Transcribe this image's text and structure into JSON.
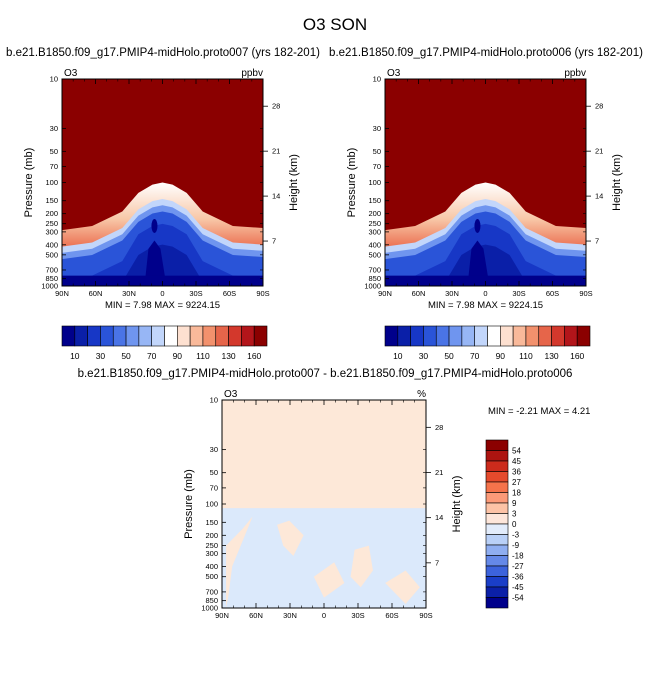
{
  "title": "O3 SON",
  "colors": {
    "dark_red": "#8b0000",
    "background": "#ffffff",
    "diff_positive": "#fde8d8",
    "diff_negative": "#dbe9fb"
  },
  "chart_data": [
    {
      "type": "heatmap",
      "title": "b.e21.B1850.f09_g17.PMIP4-midHolo.proto007 (yrs 182-201)",
      "corner_left": "O3",
      "corner_right": "ppbv",
      "ylabel": "Pressure (mb)",
      "ylabel_right": "Height (km)",
      "x_ticks": [
        "90N",
        "60N",
        "30N",
        "0",
        "30S",
        "60S",
        "90S"
      ],
      "y_ticks": [
        "10",
        "30",
        "50",
        "70",
        "100",
        "150",
        "200",
        "250",
        "300",
        "400",
        "500",
        "700",
        "850",
        "1000"
      ],
      "y_ticks_right": [
        "28",
        "21",
        "14",
        "7"
      ],
      "stats": "MIN =   7.98   MAX = 9224.15",
      "colorbar_labels": [
        "10",
        "30",
        "50",
        "70",
        "90",
        "110",
        "130",
        "160"
      ]
    },
    {
      "type": "heatmap",
      "title": "b.e21.B1850.f09_g17.PMIP4-midHolo.proto006 (yrs 182-201)",
      "corner_left": "O3",
      "corner_right": "ppbv",
      "ylabel": "Pressure (mb)",
      "ylabel_right": "Height (km)",
      "x_ticks": [
        "90N",
        "60N",
        "30N",
        "0",
        "30S",
        "60S",
        "90S"
      ],
      "y_ticks": [
        "10",
        "30",
        "50",
        "70",
        "100",
        "150",
        "200",
        "250",
        "300",
        "400",
        "500",
        "700",
        "850",
        "1000"
      ],
      "y_ticks_right": [
        "28",
        "21",
        "14",
        "7"
      ],
      "stats": "MIN =   7.98   MAX = 9224.15",
      "colorbar_labels": [
        "10",
        "30",
        "50",
        "70",
        "90",
        "110",
        "130",
        "160"
      ]
    },
    {
      "type": "heatmap",
      "title": "b.e21.B1850.f09_g17.PMIP4-midHolo.proto007 - b.e21.B1850.f09_g17.PMIP4-midHolo.proto006",
      "corner_left": "O3",
      "corner_right": "%",
      "ylabel": "Pressure (mb)",
      "ylabel_right": "Height (km)",
      "x_ticks": [
        "90N",
        "60N",
        "30N",
        "0",
        "30S",
        "60S",
        "90S"
      ],
      "y_ticks": [
        "10",
        "30",
        "50",
        "70",
        "100",
        "150",
        "200",
        "250",
        "300",
        "400",
        "500",
        "700",
        "850",
        "1000"
      ],
      "y_ticks_right": [
        "28",
        "21",
        "14",
        "7"
      ],
      "stats": "MIN =  -2.21   MAX =   4.21",
      "colorbar_labels": [
        "54",
        "45",
        "36",
        "27",
        "18",
        "9",
        "3",
        "0",
        "-3",
        "-9",
        "-18",
        "-27",
        "-36",
        "-45",
        "-54"
      ]
    }
  ]
}
